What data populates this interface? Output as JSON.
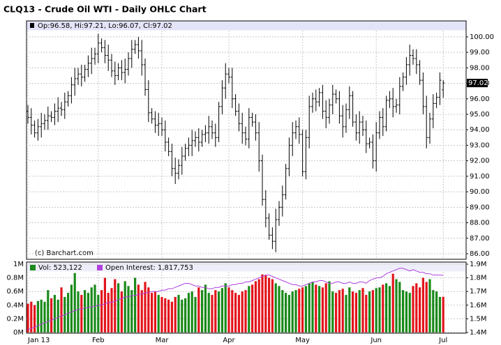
{
  "chart_data": {
    "type": "ohlc",
    "title": "CLQ13 - Crude Oil WTI - Daily OHLC Chart",
    "ohlc_legend": "Op:96.58, Hi:97.21, Lo:96.07, Cl:97.02",
    "watermark": "(c) Barchart.com",
    "color": "#000000",
    "categories": [
      "Jan 13",
      null,
      null,
      null,
      null,
      null,
      null,
      null,
      null,
      null,
      null,
      null,
      null,
      null,
      null,
      null,
      null,
      null,
      null,
      null,
      null,
      "Feb",
      null,
      null,
      null,
      null,
      null,
      null,
      null,
      null,
      null,
      null,
      null,
      null,
      null,
      null,
      null,
      null,
      null,
      null,
      "Mar",
      null,
      null,
      null,
      null,
      null,
      null,
      null,
      null,
      null,
      null,
      null,
      null,
      null,
      null,
      null,
      null,
      null,
      null,
      null,
      "Apr",
      null,
      null,
      null,
      null,
      null,
      null,
      null,
      null,
      null,
      null,
      null,
      null,
      null,
      null,
      null,
      null,
      null,
      null,
      null,
      null,
      null,
      "May",
      null,
      null,
      null,
      null,
      null,
      null,
      null,
      null,
      null,
      null,
      null,
      null,
      null,
      null,
      null,
      null,
      null,
      null,
      null,
      null,
      null,
      "Jun",
      null,
      null,
      null,
      null,
      null,
      null,
      null,
      null,
      null,
      null,
      null,
      null,
      null,
      null,
      null,
      null,
      null,
      null,
      null,
      "Jul"
    ],
    "open": [
      95.2,
      94.8,
      94.3,
      93.8,
      94.2,
      94.4,
      94.6,
      94.9,
      94.8,
      95.2,
      95.4,
      95.3,
      95.8,
      96.2,
      96.9,
      97.3,
      97.6,
      97.4,
      97.9,
      98.3,
      98.6,
      98.9,
      99.6,
      99.3,
      98.8,
      98.5,
      97.8,
      97.5,
      98.0,
      97.7,
      97.9,
      98.6,
      99.2,
      99.5,
      99.1,
      98.2,
      96.6,
      95.1,
      94.7,
      94.3,
      94.4,
      94.0,
      93.2,
      92.6,
      91.5,
      91.2,
      91.7,
      92.3,
      92.8,
      93.0,
      93.3,
      93.5,
      93.2,
      93.7,
      93.8,
      94.2,
      93.8,
      93.5,
      95.5,
      96.7,
      97.6,
      97.4,
      96.0,
      95.2,
      94.4,
      93.8,
      93.4,
      94.8,
      94.5,
      93.8,
      92.0,
      89.5,
      88.3,
      87.2,
      86.8,
      88.2,
      89.0,
      89.8,
      91.5,
      93.0,
      93.8,
      94.2,
      93.7,
      91.3,
      93.5,
      95.5,
      96.0,
      95.8,
      96.4,
      95.2,
      94.8,
      95.6,
      96.3,
      96.0,
      94.9,
      94.2,
      95.3,
      96.2,
      94.5,
      93.8,
      94.5,
      94.0,
      93.1,
      93.2,
      92.0,
      93.8,
      94.8,
      94.2,
      95.9,
      96.0,
      95.5,
      95.6,
      96.8,
      97.4,
      98.2,
      98.8,
      98.6,
      98.2,
      97.2,
      95.5,
      93.5,
      94.7,
      95.7,
      96.1,
      96.58
    ],
    "high": [
      95.6,
      95.4,
      94.6,
      94.7,
      95.1,
      95.0,
      95.5,
      95.2,
      95.7,
      96.1,
      95.8,
      96.4,
      96.5,
      97.4,
      98.0,
      98.0,
      98.2,
      98.2,
      98.8,
      99.3,
      99.3,
      100.2,
      99.9,
      99.8,
      99.5,
      98.9,
      98.4,
      98.3,
      98.5,
      98.6,
      99.0,
      99.8,
      99.8,
      100.0,
      99.8,
      98.6,
      97.2,
      95.4,
      95.2,
      95.1,
      94.8,
      94.6,
      93.5,
      93.1,
      92.2,
      92.1,
      92.9,
      93.1,
      93.5,
      94.0,
      93.9,
      94.1,
      94.0,
      94.3,
      94.9,
      94.6,
      94.4,
      95.8,
      97.2,
      98.3,
      98.0,
      98.0,
      96.3,
      95.7,
      95.1,
      94.2,
      95.4,
      95.1,
      95.0,
      94.5,
      92.4,
      90.1,
      88.6,
      87.7,
      88.9,
      89.4,
      90.4,
      91.8,
      93.5,
      94.5,
      94.6,
      94.8,
      94.0,
      94.0,
      96.2,
      96.4,
      96.6,
      96.7,
      96.9,
      95.9,
      96.0,
      96.9,
      96.6,
      96.5,
      95.6,
      95.7,
      96.8,
      96.5,
      95.0,
      95.2,
      94.9,
      94.6,
      93.5,
      93.7,
      94.5,
      95.2,
      95.4,
      96.2,
      96.5,
      96.7,
      96.0,
      97.4,
      97.7,
      98.7,
      99.5,
      99.2,
      99.2,
      98.5,
      97.7,
      96.2,
      95.1,
      96.3,
      96.4,
      97.7,
      97.21
    ],
    "low": [
      94.4,
      93.7,
      93.5,
      93.3,
      93.5,
      94.0,
      94.0,
      94.5,
      94.3,
      94.5,
      94.9,
      94.7,
      95.5,
      95.7,
      96.2,
      96.9,
      96.8,
      97.1,
      97.4,
      97.6,
      98.2,
      98.3,
      99.0,
      98.3,
      97.8,
      97.4,
      96.9,
      97.2,
      97.2,
      97.0,
      97.5,
      98.0,
      98.9,
      98.6,
      97.5,
      96.2,
      94.5,
      94.4,
      93.8,
      93.6,
      93.6,
      92.6,
      92.3,
      91.0,
      90.5,
      90.8,
      91.1,
      92.0,
      92.3,
      92.3,
      92.9,
      92.6,
      92.9,
      93.2,
      93.1,
      93.4,
      92.9,
      93.2,
      95.0,
      96.0,
      97.0,
      95.4,
      94.9,
      93.9,
      93.1,
      93.0,
      92.8,
      94.2,
      93.3,
      91.3,
      89.1,
      87.7,
      86.9,
      86.3,
      86.1,
      87.8,
      88.4,
      89.5,
      91.0,
      92.3,
      93.4,
      93.1,
      91.0,
      90.8,
      92.8,
      95.1,
      95.2,
      95.5,
      94.7,
      94.1,
      94.4,
      95.0,
      95.7,
      94.4,
      93.5,
      93.8,
      94.7,
      94.2,
      93.3,
      93.1,
      93.6,
      92.5,
      92.8,
      91.5,
      91.3,
      93.4,
      93.6,
      93.9,
      95.4,
      94.8,
      95.1,
      95.0,
      96.5,
      96.9,
      97.5,
      98.2,
      97.6,
      96.9,
      95.0,
      92.8,
      93.1,
      94.1,
      95.4,
      95.6,
      96.07
    ],
    "close": [
      94.8,
      94.3,
      93.8,
      94.2,
      94.4,
      94.6,
      94.9,
      94.8,
      95.2,
      95.4,
      95.3,
      95.8,
      96.2,
      96.9,
      97.3,
      97.6,
      97.4,
      97.9,
      98.3,
      98.6,
      98.9,
      99.6,
      99.3,
      98.8,
      98.5,
      97.8,
      97.5,
      98.0,
      97.7,
      97.9,
      98.6,
      99.2,
      99.5,
      99.1,
      98.2,
      96.6,
      95.1,
      94.7,
      94.3,
      94.4,
      94.0,
      93.2,
      92.6,
      91.5,
      91.2,
      91.7,
      92.3,
      92.8,
      93.0,
      93.3,
      93.5,
      93.2,
      93.7,
      93.8,
      94.2,
      93.8,
      93.5,
      95.5,
      96.7,
      97.6,
      97.4,
      96.0,
      95.2,
      94.4,
      93.8,
      93.4,
      94.8,
      94.5,
      93.8,
      92.0,
      89.5,
      88.3,
      87.2,
      86.8,
      88.2,
      89.0,
      89.8,
      91.5,
      93.0,
      93.8,
      94.2,
      93.7,
      91.3,
      93.5,
      95.5,
      96.0,
      95.8,
      96.4,
      95.2,
      94.8,
      95.6,
      96.3,
      96.0,
      94.9,
      94.2,
      95.3,
      96.2,
      94.5,
      93.8,
      94.5,
      94.0,
      93.1,
      93.2,
      92.0,
      93.8,
      94.8,
      94.2,
      95.9,
      96.0,
      95.5,
      95.6,
      96.8,
      97.4,
      98.2,
      98.8,
      98.6,
      98.2,
      97.2,
      95.5,
      93.5,
      94.7,
      95.7,
      96.1,
      97.2,
      97.02
    ],
    "ylim": [
      85.64,
      100.4
    ],
    "yticks": [
      {
        "value": 86,
        "label": "86.00"
      },
      {
        "value": 87,
        "label": "87.00"
      },
      {
        "value": 88,
        "label": "88.00"
      },
      {
        "value": 89,
        "label": "89.00"
      },
      {
        "value": 90,
        "label": "90.00"
      },
      {
        "value": 91,
        "label": "91.00"
      },
      {
        "value": 92,
        "label": "92.00"
      },
      {
        "value": 93,
        "label": "93.00"
      },
      {
        "value": 94,
        "label": "94.00"
      },
      {
        "value": 95,
        "label": "95.00"
      },
      {
        "value": 96,
        "label": "96.00"
      },
      {
        "value": 97,
        "label": "97.00"
      },
      {
        "value": 98,
        "label": "98.00"
      },
      {
        "value": 99,
        "label": "99.00"
      },
      {
        "value": 100,
        "label": "100.00"
      }
    ],
    "grid": true,
    "volume": {
      "legend": "Vol: 523,122",
      "up_color": "#1a8a1a",
      "down_color": "#e3141c",
      "values": [
        0.42,
        0.45,
        0.4,
        0.46,
        0.48,
        0.45,
        0.62,
        0.5,
        0.55,
        0.48,
        0.66,
        0.52,
        0.58,
        0.7,
        0.87,
        0.6,
        0.55,
        0.62,
        0.58,
        0.66,
        0.7,
        0.55,
        0.62,
        0.8,
        0.58,
        0.65,
        0.78,
        0.72,
        0.6,
        0.75,
        0.68,
        0.62,
        0.8,
        0.7,
        0.62,
        0.74,
        0.66,
        0.58,
        0.6,
        0.55,
        0.52,
        0.5,
        0.48,
        0.45,
        0.52,
        0.55,
        0.48,
        0.5,
        0.58,
        0.6,
        0.52,
        0.66,
        0.62,
        0.7,
        0.58,
        0.55,
        0.62,
        0.6,
        0.65,
        0.72,
        0.66,
        0.62,
        0.58,
        0.55,
        0.6,
        0.62,
        0.68,
        0.7,
        0.75,
        0.78,
        0.85,
        0.84,
        0.8,
        0.78,
        0.72,
        0.68,
        0.62,
        0.58,
        0.55,
        0.6,
        0.62,
        0.64,
        0.66,
        0.68,
        0.72,
        0.74,
        0.7,
        0.68,
        0.66,
        0.72,
        0.75,
        0.6,
        0.58,
        0.62,
        0.64,
        0.55,
        0.66,
        0.6,
        0.58,
        0.62,
        0.65,
        0.55,
        0.6,
        0.62,
        0.65,
        0.66,
        0.7,
        0.72,
        0.68,
        0.86,
        0.78,
        0.74,
        0.62,
        0.6,
        0.58,
        0.68,
        0.72,
        0.66,
        0.8,
        0.74,
        0.78,
        0.62,
        0.6,
        0.52,
        0.523
      ],
      "ylim": [
        0,
        1
      ],
      "yticks": [
        {
          "value": 0,
          "label": "0M"
        },
        {
          "value": 0.2,
          "label": "0.2M"
        },
        {
          "value": 0.4,
          "label": "0.4M"
        },
        {
          "value": 0.6,
          "label": "0.6M"
        },
        {
          "value": 0.8,
          "label": "0.8M"
        },
        {
          "value": 1,
          "label": "1M"
        }
      ]
    },
    "open_interest": {
      "legend": "Open Interest: 1,817,753",
      "color": "#b040e0",
      "axis": "y2",
      "values": [
        1.42,
        1.43,
        1.44,
        1.45,
        1.46,
        1.47,
        1.48,
        1.49,
        1.5,
        1.51,
        1.52,
        1.53,
        1.54,
        1.55,
        1.56,
        1.57,
        1.57,
        1.58,
        1.58,
        1.59,
        1.59,
        1.6,
        1.6,
        1.61,
        1.62,
        1.62,
        1.63,
        1.64,
        1.65,
        1.66,
        1.66,
        1.67,
        1.67,
        1.68,
        1.68,
        1.69,
        1.69,
        1.7,
        1.7,
        1.7,
        1.71,
        1.71,
        1.72,
        1.72,
        1.73,
        1.74,
        1.75,
        1.76,
        1.76,
        1.75,
        1.74,
        1.74,
        1.73,
        1.73,
        1.72,
        1.72,
        1.73,
        1.73,
        1.74,
        1.74,
        1.74,
        1.75,
        1.75,
        1.76,
        1.76,
        1.77,
        1.77,
        1.78,
        1.79,
        1.8,
        1.81,
        1.82,
        1.82,
        1.81,
        1.8,
        1.79,
        1.78,
        1.77,
        1.76,
        1.75,
        1.75,
        1.74,
        1.74,
        1.75,
        1.76,
        1.77,
        1.77,
        1.78,
        1.78,
        1.77,
        1.76,
        1.76,
        1.77,
        1.77,
        1.76,
        1.76,
        1.77,
        1.76,
        1.76,
        1.77,
        1.77,
        1.76,
        1.78,
        1.79,
        1.8,
        1.8,
        1.81,
        1.83,
        1.84,
        1.85,
        1.86,
        1.87,
        1.87,
        1.86,
        1.85,
        1.86,
        1.85,
        1.84,
        1.84,
        1.83,
        1.83,
        1.82,
        1.82,
        1.82,
        1.818
      ],
      "y2lim": [
        1.4,
        1.9
      ],
      "y2ticks": [
        {
          "value": 1.4,
          "label": "1.4M"
        },
        {
          "value": 1.5,
          "label": "1.5M"
        },
        {
          "value": 1.6,
          "label": "1.6M"
        },
        {
          "value": 1.7,
          "label": "1.7M"
        },
        {
          "value": 1.8,
          "label": "1.8M"
        },
        {
          "value": 1.9,
          "label": "1.9M"
        }
      ]
    }
  }
}
